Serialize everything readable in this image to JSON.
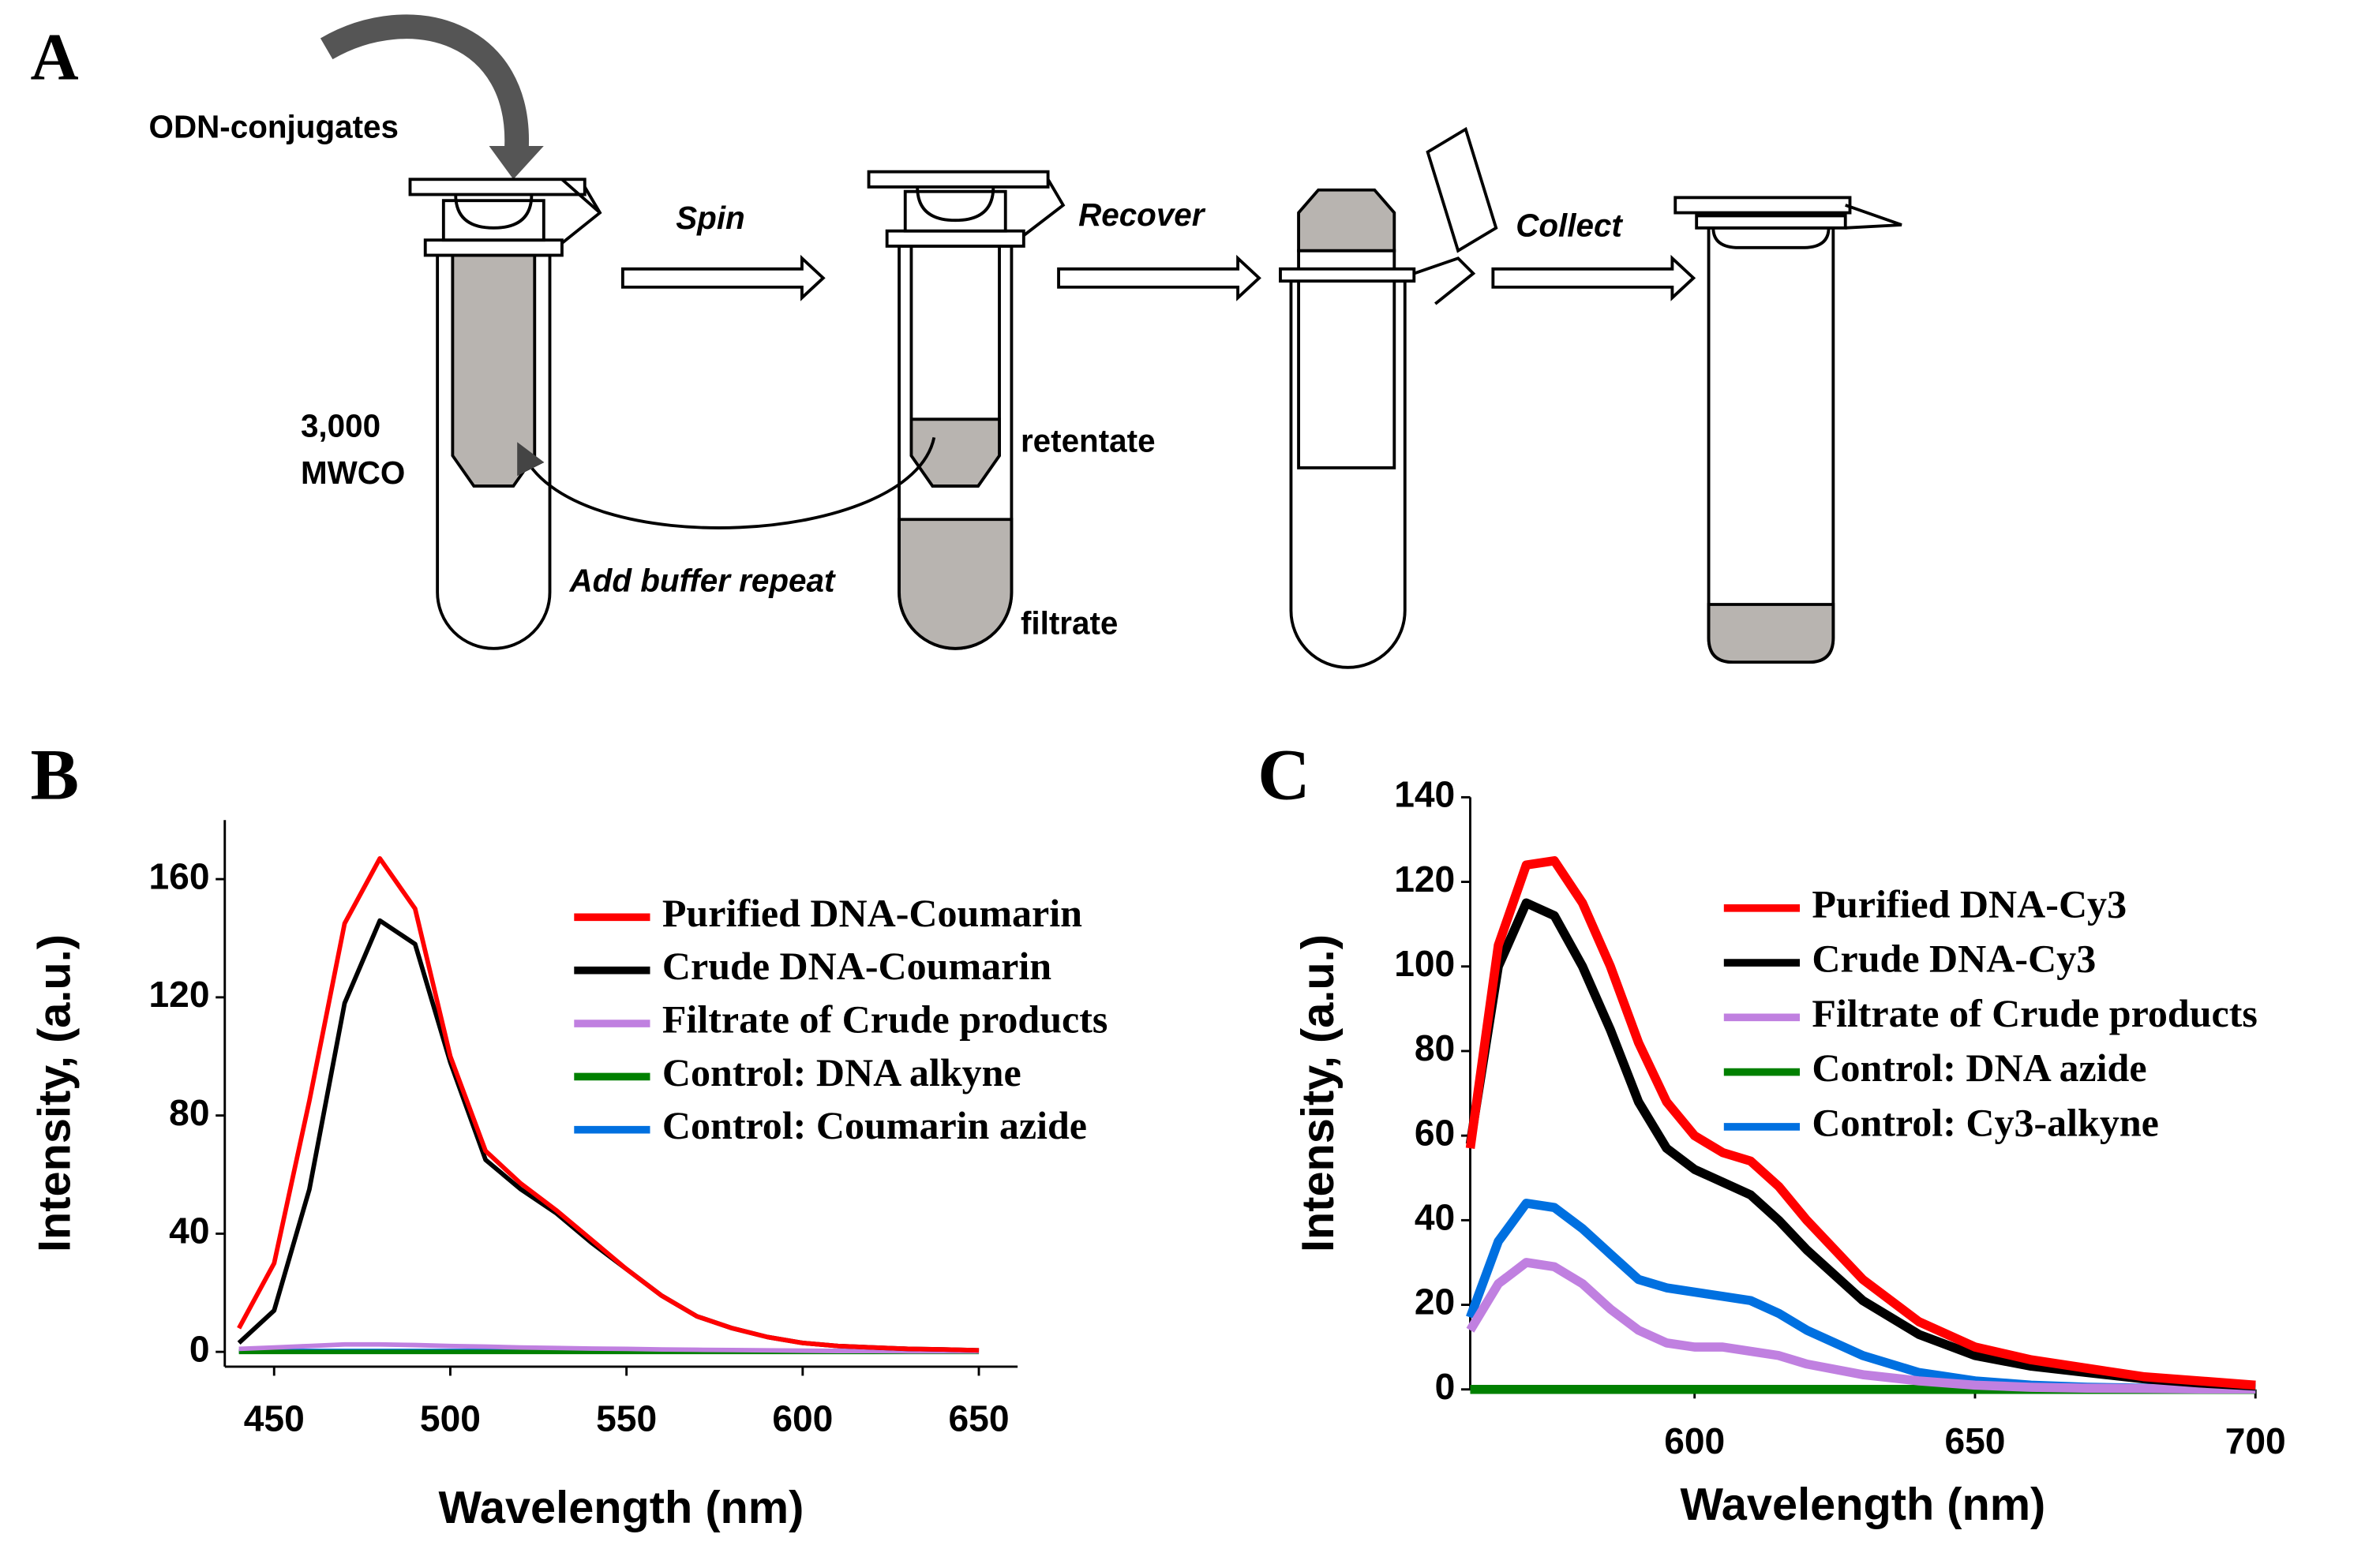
{
  "panel_labels": [
    "A",
    "B",
    "C"
  ],
  "diagram": {
    "input": "ODN-conjugates",
    "steps": [
      "Spin",
      "Recover",
      "Collect"
    ],
    "membrane": [
      "3,000",
      "MWCO"
    ],
    "retentate": "retentate",
    "filtrate": "filtrate",
    "loop": "Add buffer repeat"
  },
  "chart_data": [
    {
      "type": "line",
      "xlabel": "Wavelength (nm)",
      "ylabel": "Intensity, (a.u.)",
      "x": [
        440,
        450,
        460,
        470,
        480,
        490,
        500,
        510,
        520,
        530,
        540,
        550,
        560,
        570,
        580,
        590,
        600,
        610,
        620,
        630,
        640,
        650
      ],
      "series": [
        {
          "name": "Purified DNA-Coumarin",
          "color": "#ff0000",
          "values": [
            8,
            30,
            85,
            145,
            167,
            150,
            100,
            68,
            57,
            48,
            38,
            28,
            19,
            12,
            8,
            5,
            3,
            2,
            1.5,
            1,
            0.8,
            0.5
          ]
        },
        {
          "name": "Crude DNA-Coumarin",
          "color": "#000000",
          "values": [
            3,
            14,
            55,
            118,
            146,
            138,
            98,
            65,
            55,
            47,
            37,
            28,
            19,
            12,
            8,
            5,
            3,
            2,
            1.5,
            1,
            0.8,
            0.5
          ]
        },
        {
          "name": "Filtrate of Crude products",
          "color": "#c080e0",
          "values": [
            1,
            1.5,
            2,
            2.5,
            2.5,
            2.3,
            2,
            1.8,
            1.5,
            1.3,
            1.1,
            1,
            0.8,
            0.7,
            0.6,
            0.5,
            0.4,
            0.3,
            0.3,
            0.2,
            0.2,
            0.2
          ]
        },
        {
          "name": "Control: DNA alkyne",
          "color": "#008000",
          "values": [
            0,
            0,
            0,
            0,
            0,
            0,
            0,
            0,
            0,
            0,
            0,
            0,
            0,
            0,
            0,
            0,
            0,
            0,
            0,
            0,
            0,
            0
          ]
        },
        {
          "name": "Control: Coumarin azide",
          "color": "#0070e0",
          "values": [
            0.3,
            0.3,
            0.3,
            0.3,
            0.3,
            0.3,
            0.3,
            0.3,
            0.3,
            0.3,
            0.3,
            0.3,
            0.3,
            0.3,
            0.3,
            0.3,
            0.3,
            0.3,
            0.3,
            0.3,
            0.3,
            0.3
          ]
        }
      ],
      "xlim": [
        436,
        661
      ],
      "ylim": [
        -5,
        180
      ],
      "xticks": [
        450,
        500,
        550,
        600,
        650
      ],
      "yticks": [
        0,
        40,
        80,
        120,
        160
      ]
    },
    {
      "type": "line",
      "xlabel": "Wavelength (nm)",
      "ylabel": "Intensity, (a.u.)",
      "x": [
        560,
        565,
        570,
        575,
        580,
        585,
        590,
        595,
        600,
        605,
        610,
        615,
        620,
        630,
        640,
        650,
        660,
        670,
        680,
        690,
        700
      ],
      "series": [
        {
          "name": "Purified DNA-Cy3",
          "color": "#ff0000",
          "values": [
            57,
            105,
            124,
            125,
            115,
            100,
            82,
            68,
            60,
            56,
            54,
            48,
            40,
            26,
            16,
            10,
            7,
            5,
            3,
            2,
            1
          ]
        },
        {
          "name": "Crude DNA-Cy3",
          "color": "#000000",
          "values": [
            58,
            100,
            115,
            112,
            100,
            85,
            68,
            57,
            52,
            49,
            46,
            40,
            33,
            21,
            13,
            8,
            5.5,
            4,
            2.5,
            1.5,
            0.8
          ]
        },
        {
          "name": "Filtrate of Crude products",
          "color": "#c080e0",
          "values": [
            14,
            25,
            30,
            29,
            25,
            19,
            14,
            11,
            10,
            10,
            9,
            8,
            6,
            3.5,
            2,
            1,
            0.5,
            0.3,
            0.2,
            0.1,
            0.1
          ]
        },
        {
          "name": "Control: DNA azide",
          "color": "#008000",
          "values": [
            0,
            0,
            0,
            0,
            0,
            0,
            0,
            0,
            0,
            0,
            0,
            0,
            0,
            0,
            0,
            0,
            0,
            0,
            0,
            0,
            0
          ]
        },
        {
          "name": "Control: Cy3-alkyne",
          "color": "#0070e0",
          "values": [
            17,
            35,
            44,
            43,
            38,
            32,
            26,
            24,
            23,
            22,
            21,
            18,
            14,
            8,
            4,
            2,
            1,
            0.5,
            0.3,
            0.2,
            0.1
          ]
        }
      ],
      "xlim": [
        560,
        700
      ],
      "ylim": [
        0,
        140
      ],
      "xticks": [
        600,
        650,
        700
      ],
      "yticks": [
        0,
        20,
        40,
        60,
        80,
        100,
        120,
        140
      ]
    }
  ]
}
